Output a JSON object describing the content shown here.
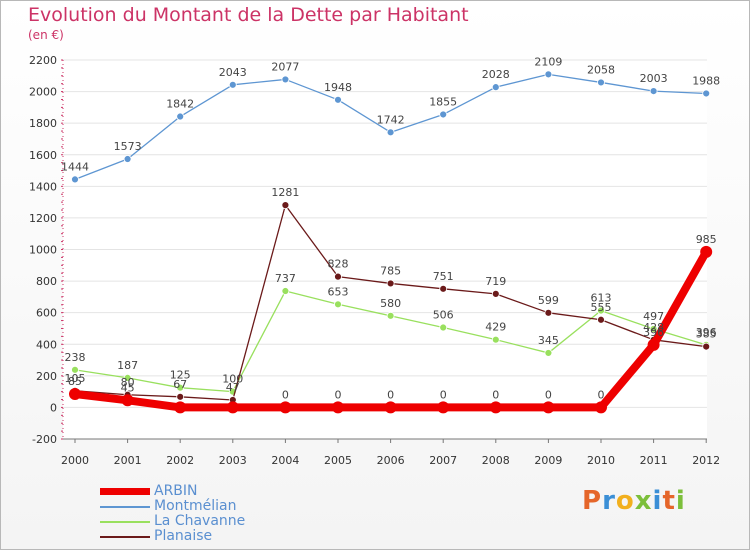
{
  "title": "Evolution du Montant de la Dette par Habitant",
  "subtitle": "(en €)",
  "logo": {
    "text": "Proxiti",
    "letter_colors": [
      "#e5662a",
      "#3b8fd6",
      "#f2b01e",
      "#7cbf3b",
      "#3b8fd6",
      "#e5662a",
      "#7cbf3b"
    ]
  },
  "chart_data": {
    "type": "line",
    "title": "Evolution du Montant de la Dette par Habitant",
    "subtitle": "(en €)",
    "x": [
      "2000",
      "2001",
      "2002",
      "2003",
      "2004",
      "2005",
      "2006",
      "2007",
      "2008",
      "2009",
      "2010",
      "2011",
      "2012"
    ],
    "yticks": [
      "-200",
      "0",
      "200",
      "400",
      "600",
      "800",
      "1000",
      "1200",
      "1400",
      "1600",
      "1800",
      "2000",
      "2200"
    ],
    "ylim": [
      -200,
      2200
    ],
    "grid": "horizontal",
    "legend_position": "bottom-left",
    "series": [
      {
        "name": "ARBIN",
        "color": "#ee0000",
        "values": [
          85,
          45,
          0,
          0,
          0,
          0,
          0,
          0,
          0,
          0,
          0,
          396,
          985
        ],
        "labels": [
          "85",
          "45",
          "",
          "",
          "0",
          "0",
          "0",
          "0",
          "0",
          "0",
          "0",
          "396",
          "985"
        ]
      },
      {
        "name": "Montmélian",
        "color": "#5e96d2",
        "values": [
          1444,
          1573,
          1842,
          2043,
          2077,
          1948,
          1742,
          1855,
          2028,
          2109,
          2058,
          2003,
          1988
        ],
        "labels": [
          "1444",
          "1573",
          "1842",
          "2043",
          "2077",
          "1948",
          "1742",
          "1855",
          "2028",
          "2109",
          "2058",
          "2003",
          "1988"
        ]
      },
      {
        "name": "La Chavanne",
        "color": "#99e05e",
        "values": [
          238,
          187,
          125,
          100,
          737,
          653,
          580,
          506,
          429,
          345,
          613,
          497,
          396
        ],
        "labels": [
          "238",
          "187",
          "125",
          "100",
          "737",
          "653",
          "580",
          "506",
          "429",
          "345",
          "613",
          "497",
          "396"
        ]
      },
      {
        "name": "Planaise",
        "color": "#6b1a1a",
        "values": [
          105,
          80,
          67,
          47,
          1281,
          828,
          785,
          751,
          719,
          599,
          555,
          428,
          385
        ],
        "labels": [
          "105",
          "80",
          "67",
          "47",
          "1281",
          "828",
          "785",
          "751",
          "719",
          "599",
          "555",
          "428",
          "385"
        ]
      }
    ]
  }
}
